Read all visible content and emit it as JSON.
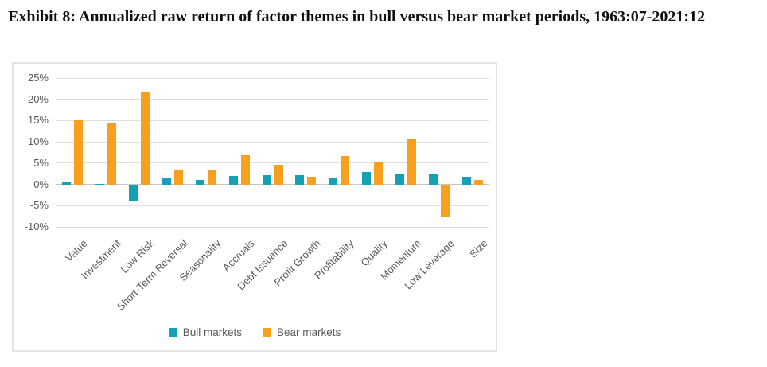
{
  "title": "Exhibit 8: Annualized raw return of factor themes in bull versus bear market periods, 1963:07-2021:12",
  "colors": {
    "bull": "#14a0b5",
    "bear": "#f8a01e",
    "grid": "#dedede",
    "axis": "#c6c6c6",
    "label_text": "#595959"
  },
  "chart_data": {
    "type": "bar",
    "title": "Exhibit 8: Annualized raw return of factor themes in bull versus bear market periods, 1963:07-2021:12",
    "categories": [
      "Value",
      "Investment",
      "Low Risk",
      "Short-Term Reversal",
      "Seasonality",
      "Accruals",
      "Debt Issuance",
      "Profit Growth",
      "Profitability",
      "Quality",
      "Momentum",
      "Low Leverage",
      "Size"
    ],
    "series": [
      {
        "name": "Bull markets",
        "color": "#14a0b5",
        "values": [
          0.7,
          0.2,
          -3.8,
          1.4,
          1.1,
          1.9,
          2.1,
          2.1,
          1.4,
          2.9,
          2.6,
          2.5,
          1.8
        ]
      },
      {
        "name": "Bear markets",
        "color": "#f8a01e",
        "values": [
          15.0,
          14.3,
          21.6,
          3.5,
          3.5,
          6.9,
          4.6,
          1.8,
          6.6,
          5.2,
          10.5,
          -7.6,
          1.0
        ]
      }
    ],
    "ylim": [
      -10,
      25
    ],
    "yticks": [
      {
        "label": "25%",
        "value": 25
      },
      {
        "label": "20%",
        "value": 20
      },
      {
        "label": "15%",
        "value": 15
      },
      {
        "label": "10%",
        "value": 10
      },
      {
        "label": "5%",
        "value": 5
      },
      {
        "label": "0%",
        "value": 0
      },
      {
        "label": "-5%",
        "value": -5
      },
      {
        "label": "-10%",
        "value": -10
      }
    ],
    "ytick_format": "percent",
    "grid": true,
    "legend_position": "bottom",
    "legend": [
      "Bull markets",
      "Bear markets"
    ]
  }
}
